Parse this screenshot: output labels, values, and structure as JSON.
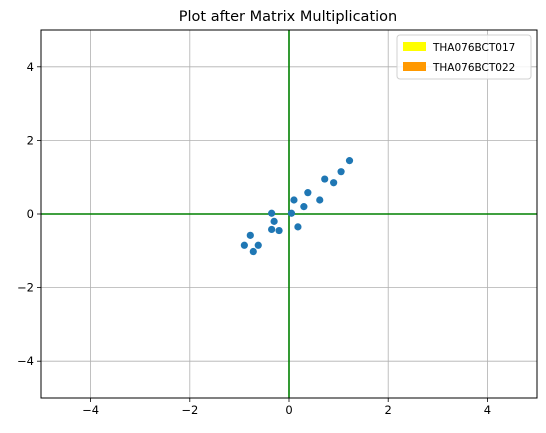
{
  "chart_data": {
    "type": "scatter",
    "title": "Plot after Matrix Multiplication",
    "xlabel": "",
    "ylabel": "",
    "xlim": [
      -5,
      5
    ],
    "ylim": [
      -5,
      5
    ],
    "x_ticks": [
      -4,
      -2,
      0,
      2,
      4
    ],
    "y_ticks": [
      -4,
      -2,
      0,
      2,
      4
    ],
    "grid": true,
    "reference_lines": {
      "x": 0,
      "y": 0,
      "color": "#008000"
    },
    "series": [
      {
        "color": "#1f77b4",
        "points": [
          [
            -0.35,
            0.02
          ],
          [
            -0.3,
            -0.2
          ],
          [
            -0.35,
            -0.42
          ],
          [
            -0.2,
            -0.45
          ],
          [
            -0.9,
            -0.85
          ],
          [
            -0.78,
            -0.58
          ],
          [
            -0.72,
            -1.02
          ],
          [
            -0.62,
            -0.85
          ],
          [
            0.05,
            0.02
          ],
          [
            0.1,
            0.38
          ],
          [
            0.18,
            -0.35
          ],
          [
            0.3,
            0.2
          ],
          [
            0.38,
            0.58
          ],
          [
            0.62,
            0.38
          ],
          [
            0.72,
            0.95
          ],
          [
            0.9,
            0.85
          ],
          [
            1.05,
            1.15
          ],
          [
            1.22,
            1.45
          ]
        ]
      }
    ],
    "legend": {
      "placement": "top-right",
      "entries": [
        {
          "label": "THA076BCT017",
          "color": "#ffff00"
        },
        {
          "label": "THA076BCT022",
          "color": "#ff9900"
        }
      ]
    }
  }
}
